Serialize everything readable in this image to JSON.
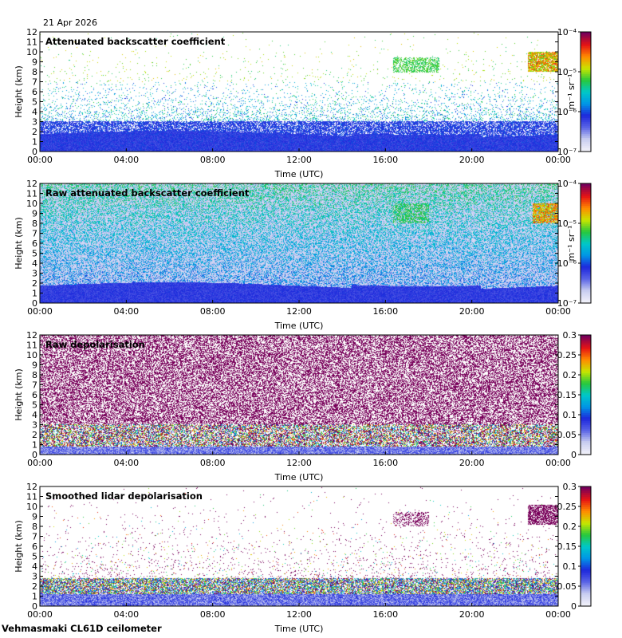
{
  "date": "21 Apr 2026",
  "footer": "Vehmasmaki CL61D ceilometer",
  "chart_data": [
    {
      "type": "heatmap",
      "title": "Attenuated backscatter coefficient",
      "xlabel": "Time (UTC)",
      "ylabel": "Height (km)",
      "xticks": [
        "00:00",
        "04:00",
        "08:00",
        "12:00",
        "16:00",
        "20:00",
        "00:00"
      ],
      "yticks": [
        "0",
        "1",
        "2",
        "3",
        "4",
        "5",
        "6",
        "7",
        "8",
        "9",
        "10",
        "11",
        "12"
      ],
      "ylim": [
        0,
        12
      ],
      "scale": "log",
      "clim": [
        1e-07,
        0.0001
      ],
      "colorbar_ticks": [
        "10⁻⁷",
        "10⁻⁶",
        "10⁻⁵",
        "10⁻⁴"
      ],
      "colorbar_label": "m⁻¹ sr⁻¹",
      "pattern": "backscatter"
    },
    {
      "type": "heatmap",
      "title": "Raw attenuated backscatter coefficient",
      "xlabel": "Time (UTC)",
      "ylabel": "Height (km)",
      "xticks": [
        "00:00",
        "04:00",
        "08:00",
        "12:00",
        "16:00",
        "20:00",
        "00:00"
      ],
      "yticks": [
        "0",
        "1",
        "2",
        "3",
        "4",
        "5",
        "6",
        "7",
        "8",
        "9",
        "10",
        "11",
        "12"
      ],
      "ylim": [
        0,
        12
      ],
      "scale": "log",
      "clim": [
        1e-07,
        0.0001
      ],
      "colorbar_ticks": [
        "10⁻⁷",
        "10⁻⁶",
        "10⁻⁵",
        "10⁻⁴"
      ],
      "colorbar_label": "m⁻¹ sr⁻¹",
      "pattern": "raw_backscatter"
    },
    {
      "type": "heatmap",
      "title": "Raw depolarisation",
      "xlabel": "Time (UTC)",
      "ylabel": "Height (km)",
      "xticks": [
        "00:00",
        "04:00",
        "08:00",
        "12:00",
        "16:00",
        "20:00",
        "00:00"
      ],
      "yticks": [
        "0",
        "1",
        "2",
        "3",
        "4",
        "5",
        "6",
        "7",
        "8",
        "9",
        "10",
        "11",
        "12"
      ],
      "ylim": [
        0,
        12
      ],
      "scale": "linear",
      "clim": [
        0,
        0.3
      ],
      "colorbar_ticks": [
        "0",
        "0.05",
        "0.1",
        "0.15",
        "0.2",
        "0.25",
        "0.3"
      ],
      "colorbar_label": "",
      "pattern": "raw_depol"
    },
    {
      "type": "heatmap",
      "title": "Smoothed lidar depolarisation",
      "xlabel": "Time (UTC)",
      "ylabel": "Height (km)",
      "xticks": [
        "00:00",
        "04:00",
        "08:00",
        "12:00",
        "16:00",
        "20:00",
        "00:00"
      ],
      "yticks": [
        "0",
        "1",
        "2",
        "3",
        "4",
        "5",
        "6",
        "7",
        "8",
        "9",
        "10",
        "11",
        "12"
      ],
      "ylim": [
        0,
        12
      ],
      "scale": "linear",
      "clim": [
        0,
        0.3
      ],
      "colorbar_ticks": [
        "0",
        "0.05",
        "0.1",
        "0.15",
        "0.2",
        "0.25",
        "0.3"
      ],
      "colorbar_label": "",
      "pattern": "smoothed_depol"
    }
  ]
}
